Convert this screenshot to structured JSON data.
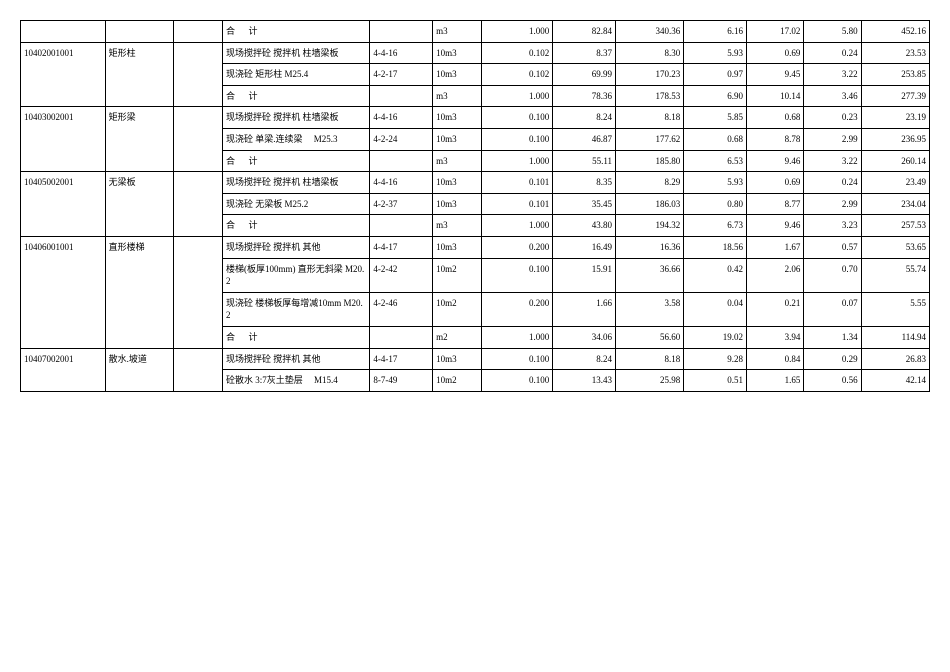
{
  "table": {
    "columns_count": 13,
    "groups": [
      {
        "code": "",
        "name": "",
        "rows": [
          {
            "desc_prefix": "合",
            "desc_suffix": "计",
            "sum": true,
            "ref": "",
            "unit": "m3",
            "q": "1.000",
            "a": "82.84",
            "b": "340.36",
            "c": "6.16",
            "d": "17.02",
            "e": "5.80",
            "f": "452.16"
          }
        ]
      },
      {
        "code": "10402001001",
        "name": "矩形柱",
        "rows": [
          {
            "desc": "现场搅拌砼 搅拌机 柱墙梁板",
            "ref": "4-4-16",
            "unit": "10m3",
            "q": "0.102",
            "a": "8.37",
            "b": "8.30",
            "c": "5.93",
            "d": "0.69",
            "e": "0.24",
            "f": "23.53"
          },
          {
            "desc": "现浇砼 矩形柱 M25.4",
            "ref": "4-2-17",
            "unit": "10m3",
            "q": "0.102",
            "a": "69.99",
            "b": "170.23",
            "c": "0.97",
            "d": "9.45",
            "e": "3.22",
            "f": "253.85"
          },
          {
            "desc_prefix": "合",
            "desc_suffix": "计",
            "sum": true,
            "ref": "",
            "unit": "m3",
            "q": "1.000",
            "a": "78.36",
            "b": "178.53",
            "c": "6.90",
            "d": "10.14",
            "e": "3.46",
            "f": "277.39"
          }
        ]
      },
      {
        "code": "10403002001",
        "name": "矩形梁",
        "rows": [
          {
            "desc": "现场搅拌砼 搅拌机 柱墙梁板",
            "ref": "4-4-16",
            "unit": "10m3",
            "q": "0.100",
            "a": "8.24",
            "b": "8.18",
            "c": "5.85",
            "d": "0.68",
            "e": "0.23",
            "f": "23.19"
          },
          {
            "desc": "现浇砼 单梁.连续梁　 M25.3",
            "ref": "4-2-24",
            "unit": "10m3",
            "q": "0.100",
            "a": "46.87",
            "b": "177.62",
            "c": "0.68",
            "d": "8.78",
            "e": "2.99",
            "f": "236.95"
          },
          {
            "desc_prefix": "合",
            "desc_suffix": "计",
            "sum": true,
            "ref": "",
            "unit": "m3",
            "q": "1.000",
            "a": "55.11",
            "b": "185.80",
            "c": "6.53",
            "d": "9.46",
            "e": "3.22",
            "f": "260.14"
          }
        ]
      },
      {
        "code": "10405002001",
        "name": "无梁板",
        "rows": [
          {
            "desc": "现场搅拌砼 搅拌机 柱墙梁板",
            "ref": "4-4-16",
            "unit": "10m3",
            "q": "0.101",
            "a": "8.35",
            "b": "8.29",
            "c": "5.93",
            "d": "0.69",
            "e": "0.24",
            "f": "23.49"
          },
          {
            "desc": "现浇砼 无梁板 M25.2",
            "ref": "4-2-37",
            "unit": "10m3",
            "q": "0.101",
            "a": "35.45",
            "b": "186.03",
            "c": "0.80",
            "d": "8.77",
            "e": "2.99",
            "f": "234.04"
          },
          {
            "desc_prefix": "合",
            "desc_suffix": "计",
            "sum": true,
            "ref": "",
            "unit": "m3",
            "q": "1.000",
            "a": "43.80",
            "b": "194.32",
            "c": "6.73",
            "d": "9.46",
            "e": "3.23",
            "f": "257.53"
          }
        ]
      },
      {
        "code": "10406001001",
        "name": "直形楼梯",
        "rows": [
          {
            "desc": "现场搅拌砼 搅拌机 其他",
            "ref": "4-4-17",
            "unit": "10m3",
            "q": "0.200",
            "a": "16.49",
            "b": "16.36",
            "c": "18.56",
            "d": "1.67",
            "e": "0.57",
            "f": "53.65"
          },
          {
            "desc": "楼梯(板厚100mm) 直形无斜梁 M20.2",
            "ref": "4-2-42",
            "unit": "10m2",
            "q": "0.100",
            "a": "15.91",
            "b": "36.66",
            "c": "0.42",
            "d": "2.06",
            "e": "0.70",
            "f": "55.74"
          },
          {
            "desc": "现浇砼 楼梯板厚每增减10mm M20.2",
            "ref": "4-2-46",
            "unit": "10m2",
            "q": "0.200",
            "a": "1.66",
            "b": "3.58",
            "c": "0.04",
            "d": "0.21",
            "e": "0.07",
            "f": "5.55"
          },
          {
            "desc_prefix": "合",
            "desc_suffix": "计",
            "sum": true,
            "ref": "",
            "unit": "m2",
            "q": "1.000",
            "a": "34.06",
            "b": "56.60",
            "c": "19.02",
            "d": "3.94",
            "e": "1.34",
            "f": "114.94"
          }
        ]
      },
      {
        "code": "10407002001",
        "name": "散水.坡道",
        "rows": [
          {
            "desc": "现场搅拌砼 搅拌机 其他",
            "ref": "4-4-17",
            "unit": "10m3",
            "q": "0.100",
            "a": "8.24",
            "b": "8.18",
            "c": "9.28",
            "d": "0.84",
            "e": "0.29",
            "f": "26.83"
          },
          {
            "desc": "砼散水 3:7灰土垫层　 M15.4",
            "ref": "8-7-49",
            "unit": "10m2",
            "q": "0.100",
            "a": "13.43",
            "b": "25.98",
            "c": "0.51",
            "d": "1.65",
            "e": "0.56",
            "f": "42.14"
          }
        ]
      }
    ]
  }
}
